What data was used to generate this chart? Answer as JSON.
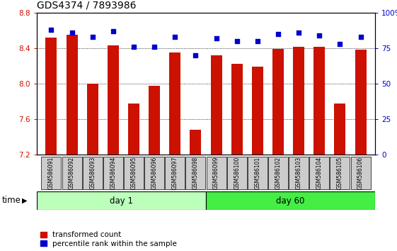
{
  "title": "GDS4374 / 7893986",
  "samples": [
    "GSM586091",
    "GSM586092",
    "GSM586093",
    "GSM586094",
    "GSM586095",
    "GSM586096",
    "GSM586097",
    "GSM586098",
    "GSM586099",
    "GSM586100",
    "GSM586101",
    "GSM586102",
    "GSM586103",
    "GSM586104",
    "GSM586105",
    "GSM586106"
  ],
  "bar_values": [
    8.52,
    8.55,
    8.0,
    8.43,
    7.78,
    7.98,
    8.35,
    7.48,
    8.32,
    8.22,
    8.19,
    8.39,
    8.42,
    8.42,
    7.78,
    8.38
  ],
  "dot_values": [
    88,
    86,
    83,
    87,
    76,
    76,
    83,
    70,
    82,
    80,
    80,
    85,
    86,
    84,
    78,
    83
  ],
  "ymin": 7.2,
  "ymax": 8.8,
  "y2min": 0,
  "y2max": 100,
  "yticks": [
    7.2,
    7.6,
    8.0,
    8.4,
    8.8
  ],
  "y2ticks": [
    0,
    25,
    50,
    75,
    100
  ],
  "bar_color": "#cc1100",
  "dot_color": "#0000cc",
  "group1_label": "day 1",
  "group2_label": "day 60",
  "group1_count": 8,
  "group2_count": 8,
  "group1_color": "#bbffbb",
  "group2_color": "#44ee44",
  "xlabel_time": "time",
  "legend1": "transformed count",
  "legend2": "percentile rank within the sample",
  "bg_color": "#ffffff",
  "plot_bg": "#ffffff",
  "tick_label_color_left": "#cc1100",
  "tick_label_color_right": "#0000cc",
  "title_fontsize": 10,
  "tick_fontsize": 7.5,
  "sample_fontsize": 5.5,
  "grid_color": "#000000",
  "grid_style": "dotted",
  "bar_width": 0.55,
  "sample_box_color": "#cccccc"
}
